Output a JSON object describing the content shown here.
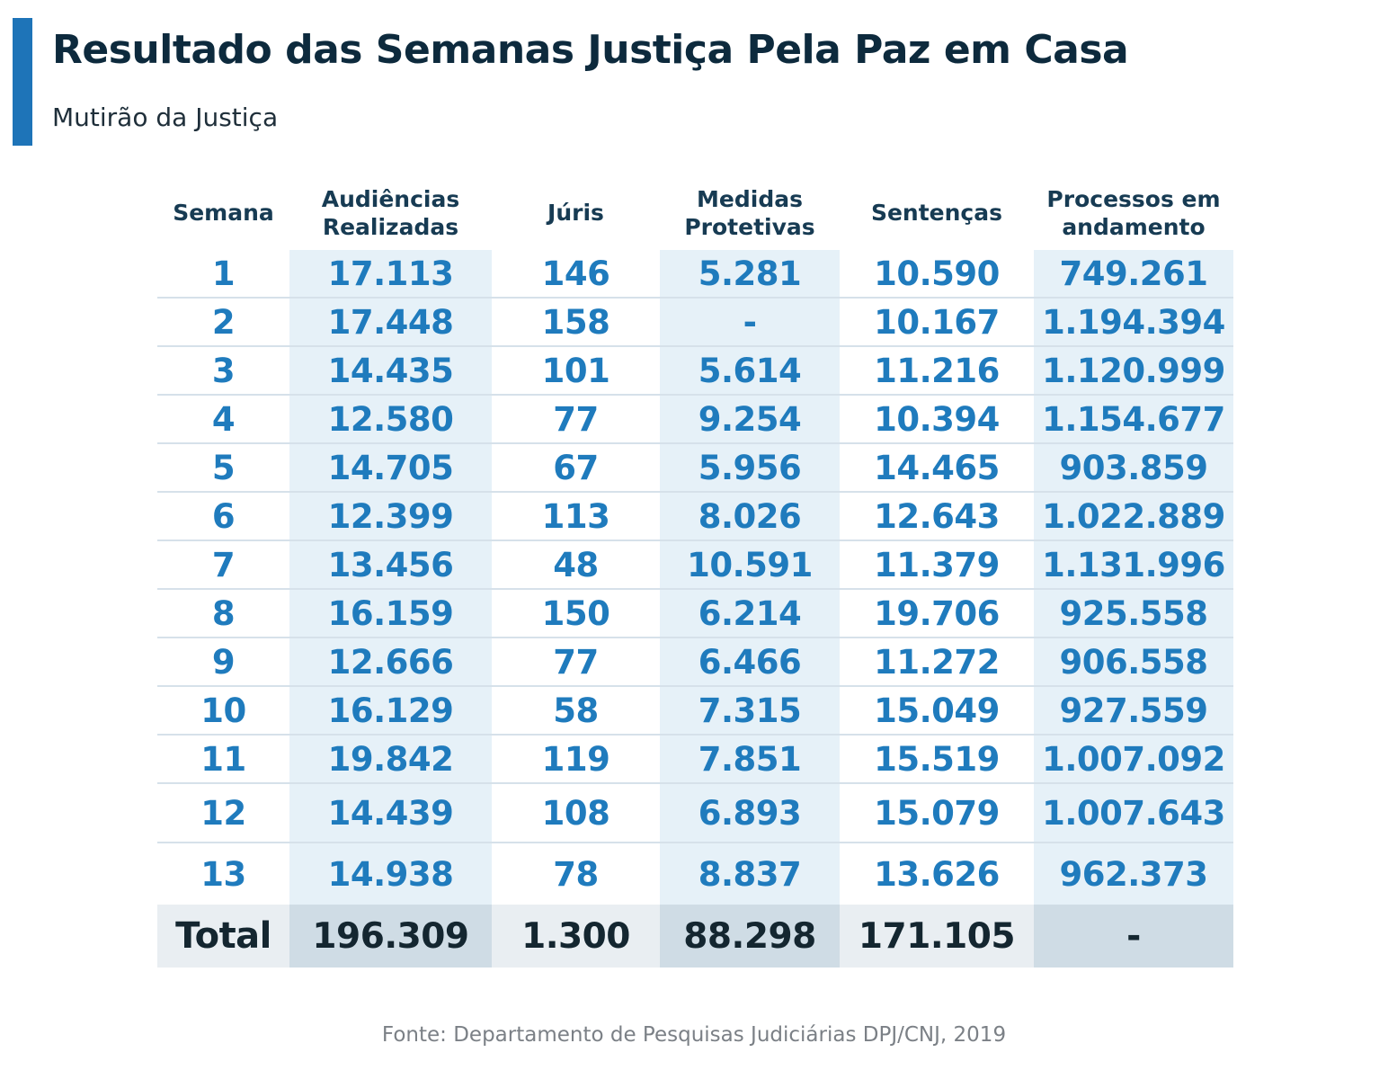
{
  "header": {
    "title": "Resultado das Semanas Justiça Pela Paz em Casa",
    "subtitle": "Mutirão da Justiça"
  },
  "chart_data": {
    "type": "table",
    "columns": [
      "Semana",
      "Audiências Realizadas",
      "Júris",
      "Medidas Protetivas",
      "Sentenças",
      "Processos em andamento"
    ],
    "rows": [
      [
        "1",
        "17.113",
        "146",
        "5.281",
        "10.590",
        "749.261"
      ],
      [
        "2",
        "17.448",
        "158",
        "-",
        "10.167",
        "1.194.394"
      ],
      [
        "3",
        "14.435",
        "101",
        "5.614",
        "11.216",
        "1.120.999"
      ],
      [
        "4",
        "12.580",
        "77",
        "9.254",
        "10.394",
        "1.154.677"
      ],
      [
        "5",
        "14.705",
        "67",
        "5.956",
        "14.465",
        "903.859"
      ],
      [
        "6",
        "12.399",
        "113",
        "8.026",
        "12.643",
        "1.022.889"
      ],
      [
        "7",
        "13.456",
        "48",
        "10.591",
        "11.379",
        "1.131.996"
      ],
      [
        "8",
        "16.159",
        "150",
        "6.214",
        "19.706",
        "925.558"
      ],
      [
        "9",
        "12.666",
        "77",
        "6.466",
        "11.272",
        "906.558"
      ],
      [
        "10",
        "16.129",
        "58",
        "7.315",
        "15.049",
        "927.559"
      ],
      [
        "11",
        "19.842",
        "119",
        "7.851",
        "15.519",
        "1.007.092"
      ],
      [
        "12",
        "14.439",
        "108",
        "6.893",
        "15.079",
        "1.007.643"
      ],
      [
        "13",
        "14.938",
        "78",
        "8.837",
        "13.626",
        "962.373"
      ]
    ],
    "total": [
      "Total",
      "196.309",
      "1.300",
      "88.298",
      "171.105",
      "-"
    ]
  },
  "footer": {
    "source": "Fonte: Departamento de Pesquisas Judiciárias DPJ/CNJ, 2019"
  },
  "colors": {
    "accent": "#1e74b8",
    "title": "#0d2a3d",
    "value": "#1f7bbd",
    "shaded_column": "#e6f1f8",
    "total_row": "#e9eef2"
  }
}
